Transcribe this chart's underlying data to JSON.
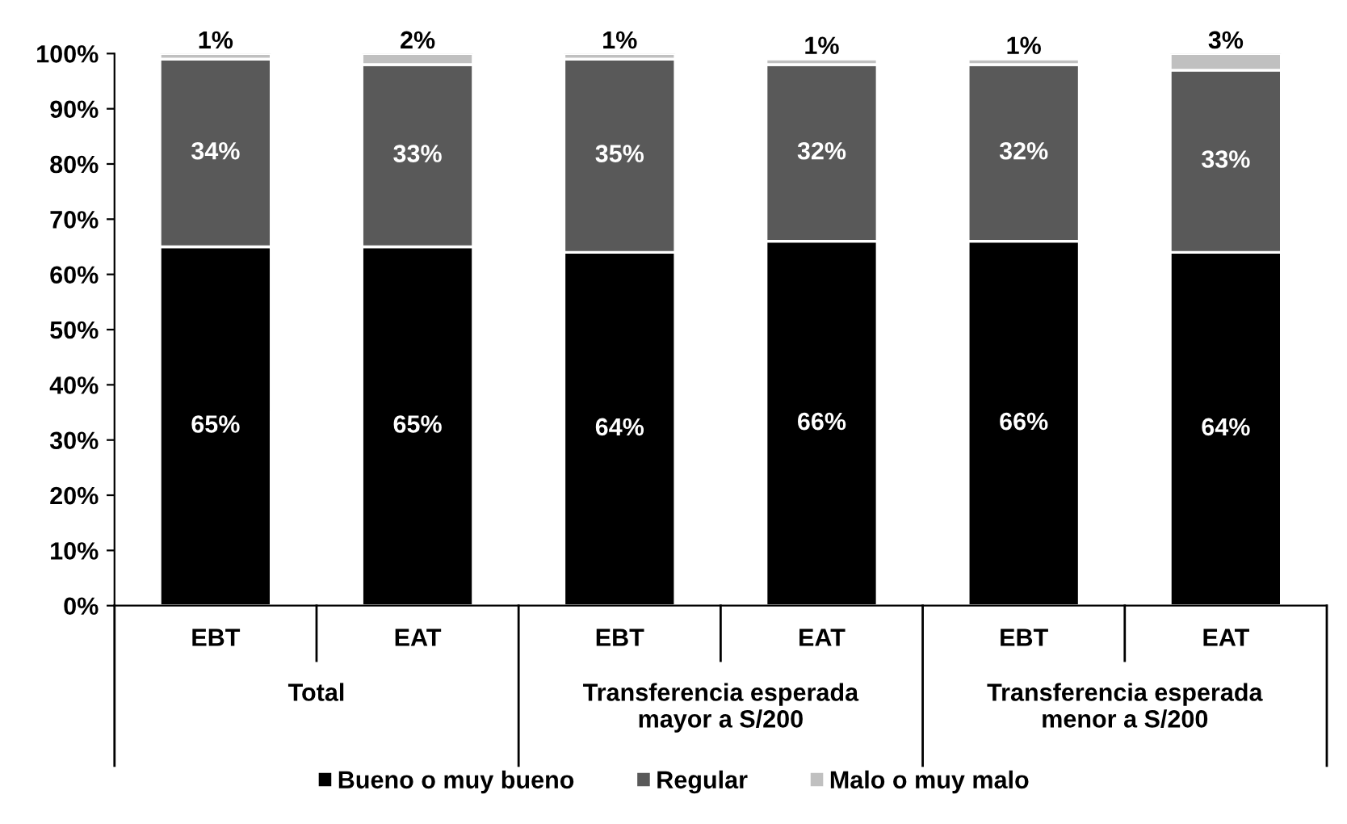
{
  "chart_data": {
    "type": "bar",
    "stacked": true,
    "categories": [
      "EBT",
      "EAT",
      "EBT",
      "EAT",
      "EBT",
      "EAT"
    ],
    "series": [
      {
        "name": "Bueno o muy bueno",
        "color": "#000000",
        "values": [
          65,
          65,
          64,
          66,
          66,
          64
        ],
        "value_labels": [
          "65%",
          "65%",
          "64%",
          "66%",
          "66%",
          "64%"
        ]
      },
      {
        "name": "Regular",
        "color": "#595959",
        "values": [
          34,
          33,
          35,
          32,
          32,
          33
        ],
        "value_labels": [
          "34%",
          "33%",
          "35%",
          "32%",
          "32%",
          "33%"
        ]
      },
      {
        "name": "Malo o muy malo",
        "color": "#c0c0c0",
        "values": [
          1,
          2,
          1,
          1,
          1,
          3
        ],
        "value_labels": [
          "1%",
          "2%",
          "1%",
          "1%",
          "1%",
          "3%"
        ]
      }
    ],
    "annotations": [
      "Total",
      "Transferencia esperada\nmayor a S/200",
      "Transferencia esperada\nmenor a S/200"
    ],
    "ylim": [
      0,
      100
    ],
    "yticks": [
      {
        "value": 0,
        "label": "0%"
      },
      {
        "value": 10,
        "label": "10%"
      },
      {
        "value": 20,
        "label": "20%"
      },
      {
        "value": 30,
        "label": "30%"
      },
      {
        "value": 40,
        "label": "40%"
      },
      {
        "value": 50,
        "label": "50%"
      },
      {
        "value": 60,
        "label": "60%"
      },
      {
        "value": 70,
        "label": "70%"
      },
      {
        "value": 80,
        "label": "80%"
      },
      {
        "value": 90,
        "label": "90%"
      },
      {
        "value": 100,
        "label": "100%"
      }
    ],
    "grid": false,
    "legend": "bottom"
  }
}
